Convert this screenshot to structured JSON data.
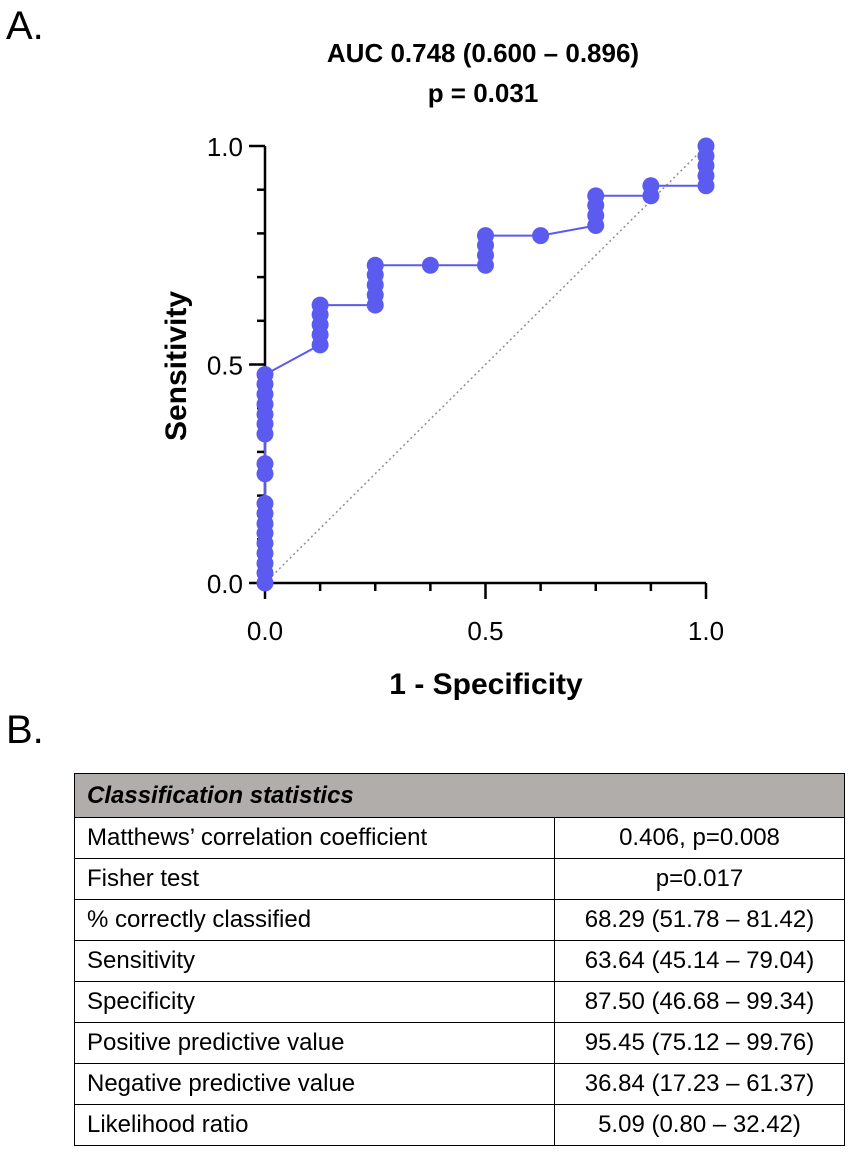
{
  "panels": {
    "a_label": "A.",
    "b_label": "B."
  },
  "chart_data": {
    "type": "line",
    "title": "AUC 0.748 (0.600 – 0.896)",
    "subtitle": "p = 0.031",
    "xlabel": "1 - Specificity",
    "ylabel": "Sensitivity",
    "xlim": [
      0,
      1
    ],
    "ylim": [
      0,
      1
    ],
    "x_ticks": [
      0.0,
      0.5,
      1.0
    ],
    "y_ticks": [
      0.0,
      0.5,
      1.0
    ],
    "x_tick_labels": [
      "0.0",
      "0.5",
      "1.0"
    ],
    "y_tick_labels": [
      "0.0",
      "0.5",
      "1.0"
    ],
    "grid": false,
    "series": [
      {
        "name": "ROC curve",
        "color": "#5b5bef",
        "points": [
          [
            0,
            0
          ],
          [
            0,
            0.023
          ],
          [
            0,
            0.045
          ],
          [
            0,
            0.068
          ],
          [
            0,
            0.091
          ],
          [
            0,
            0.114
          ],
          [
            0,
            0.136
          ],
          [
            0,
            0.159
          ],
          [
            0,
            0.182
          ],
          [
            0,
            0.25
          ],
          [
            0,
            0.273
          ],
          [
            0,
            0.341
          ],
          [
            0,
            0.364
          ],
          [
            0,
            0.386
          ],
          [
            0,
            0.409
          ],
          [
            0,
            0.432
          ],
          [
            0,
            0.455
          ],
          [
            0,
            0.477
          ],
          [
            0.125,
            0.545
          ],
          [
            0.125,
            0.568
          ],
          [
            0.125,
            0.591
          ],
          [
            0.125,
            0.614
          ],
          [
            0.125,
            0.636
          ],
          [
            0.25,
            0.636
          ],
          [
            0.25,
            0.659
          ],
          [
            0.25,
            0.682
          ],
          [
            0.25,
            0.705
          ],
          [
            0.25,
            0.727
          ],
          [
            0.375,
            0.727
          ],
          [
            0.5,
            0.727
          ],
          [
            0.5,
            0.75
          ],
          [
            0.5,
            0.773
          ],
          [
            0.5,
            0.795
          ],
          [
            0.625,
            0.795
          ],
          [
            0.75,
            0.818
          ],
          [
            0.75,
            0.841
          ],
          [
            0.75,
            0.864
          ],
          [
            0.75,
            0.886
          ],
          [
            0.875,
            0.886
          ],
          [
            0.875,
            0.909
          ],
          [
            1.0,
            0.909
          ],
          [
            1.0,
            0.932
          ],
          [
            1.0,
            0.955
          ],
          [
            1.0,
            0.977
          ],
          [
            1.0,
            1.0
          ]
        ]
      },
      {
        "name": "Reference line",
        "color": "#909090",
        "style": "dotted",
        "points": [
          [
            0,
            0
          ],
          [
            1,
            1
          ]
        ]
      }
    ]
  },
  "table": {
    "header": "Classification statistics",
    "rows": [
      {
        "label": "Matthews’ correlation coefficient",
        "value": "0.406, p=0.008"
      },
      {
        "label": "Fisher test",
        "value": "p=0.017"
      },
      {
        "label": "% correctly classified",
        "value": "68.29 (51.78 – 81.42)"
      },
      {
        "label": "Sensitivity",
        "value": "63.64 (45.14 – 79.04)"
      },
      {
        "label": "Specificity",
        "value": "87.50 (46.68 – 99.34)"
      },
      {
        "label": "Positive predictive value",
        "value": "95.45 (75.12 – 99.76)"
      },
      {
        "label": "Negative predictive value",
        "value": "36.84 (17.23 – 61.37)"
      },
      {
        "label": "Likelihood ratio",
        "value": "5.09 (0.80 – 32.42)"
      }
    ]
  }
}
